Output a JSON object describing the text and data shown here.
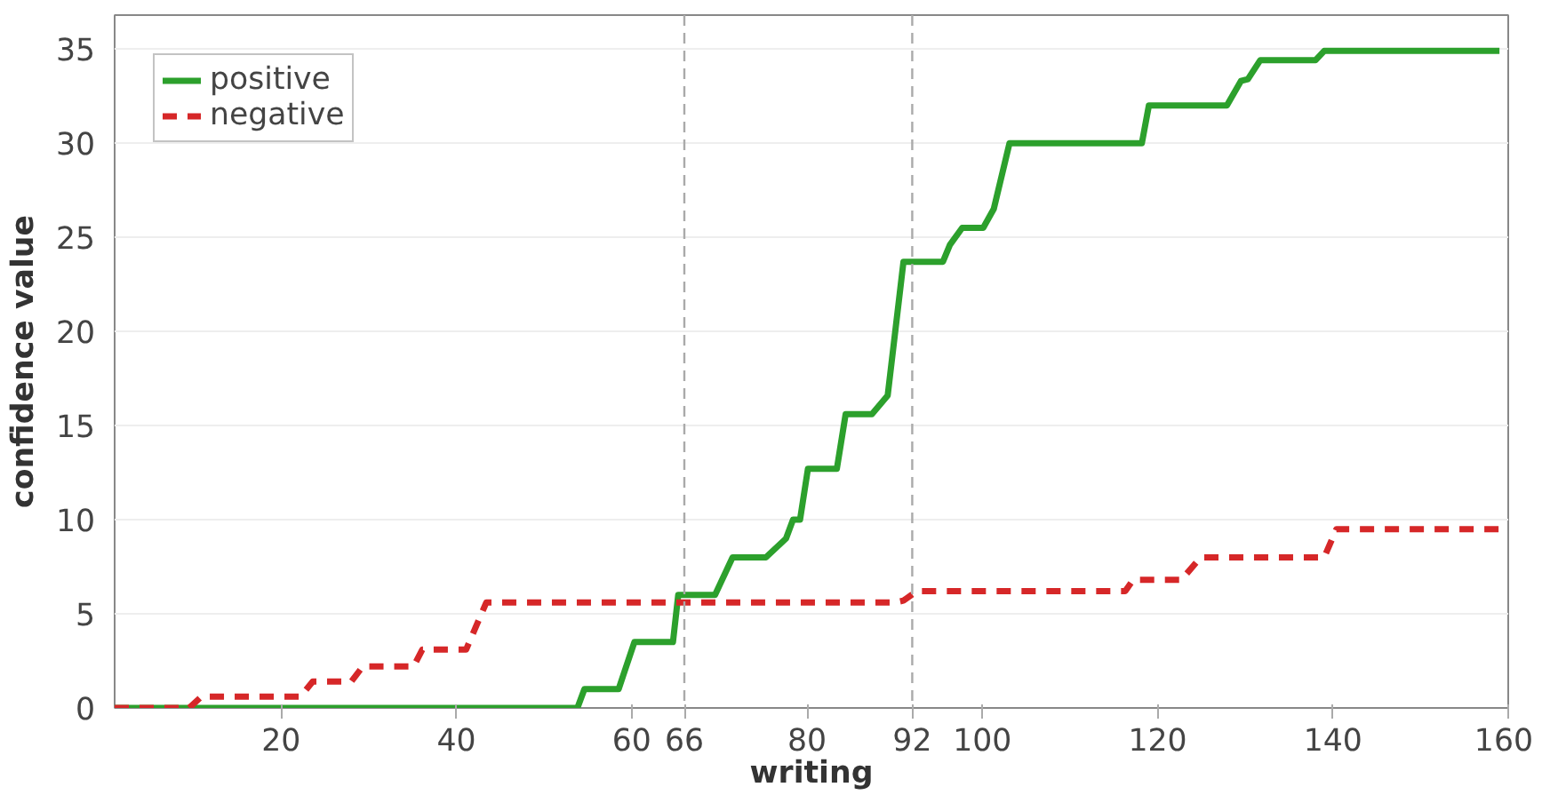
{
  "chart_data": {
    "type": "line",
    "xlabel": "writing",
    "ylabel": "confidence value",
    "xlim": [
      1,
      160
    ],
    "ylim": [
      0,
      36.8
    ],
    "xticks": [
      20,
      40,
      60,
      66,
      80,
      92,
      100,
      120,
      140,
      160
    ],
    "yticks": [
      0,
      5,
      10,
      15,
      20,
      25,
      30,
      35
    ],
    "grid": "y",
    "legend": "top left",
    "series": [
      {
        "name": "positive",
        "color": "#2ca02c",
        "line_style": "solid",
        "x": [
          1,
          53.8,
          54.6,
          58.5,
          60.3,
          64.7,
          65.3,
          69.5,
          71.5,
          75.3,
          77.6,
          78.4,
          79.2,
          80.1,
          83.4,
          84.4,
          87.4,
          89.2,
          91,
          95.5,
          96.3,
          97.7,
          100.1,
          101.3,
          103.1,
          118.2,
          119,
          127.9,
          129.5,
          130.3,
          131.7,
          138,
          139,
          159
        ],
        "values": [
          0,
          0,
          1,
          1,
          3.5,
          3.5,
          6,
          6,
          8,
          8,
          9,
          10,
          10,
          12.7,
          12.7,
          15.6,
          15.6,
          16.6,
          23.7,
          23.7,
          24.6,
          25.5,
          25.5,
          26.5,
          30,
          30,
          32,
          32,
          33.3,
          33.4,
          34.4,
          34.4,
          34.9,
          34.9
        ]
      },
      {
        "name": "negative",
        "color": "#d62728",
        "line_style": "dashed",
        "x": [
          1,
          9.5,
          10.9,
          22.2,
          23.6,
          28,
          29.3,
          35.1,
          36.1,
          41.1,
          43.4,
          90,
          91,
          92.5,
          116.3,
          117.2,
          122.7,
          124.9,
          139,
          140.4,
          159
        ],
        "values": [
          0,
          0,
          0.6,
          0.6,
          1.4,
          1.4,
          2.2,
          2.2,
          3.1,
          3.1,
          5.6,
          5.6,
          5.7,
          6.2,
          6.2,
          6.8,
          6.8,
          8.0,
          8.0,
          9.5,
          9.5
        ]
      }
    ],
    "ref_lines": [
      {
        "axis": "x",
        "value": 66,
        "color": "#aaaaaa",
        "line_style": "dashed"
      },
      {
        "axis": "x",
        "value": 92,
        "color": "#aaaaaa",
        "line_style": "dashed"
      }
    ]
  }
}
